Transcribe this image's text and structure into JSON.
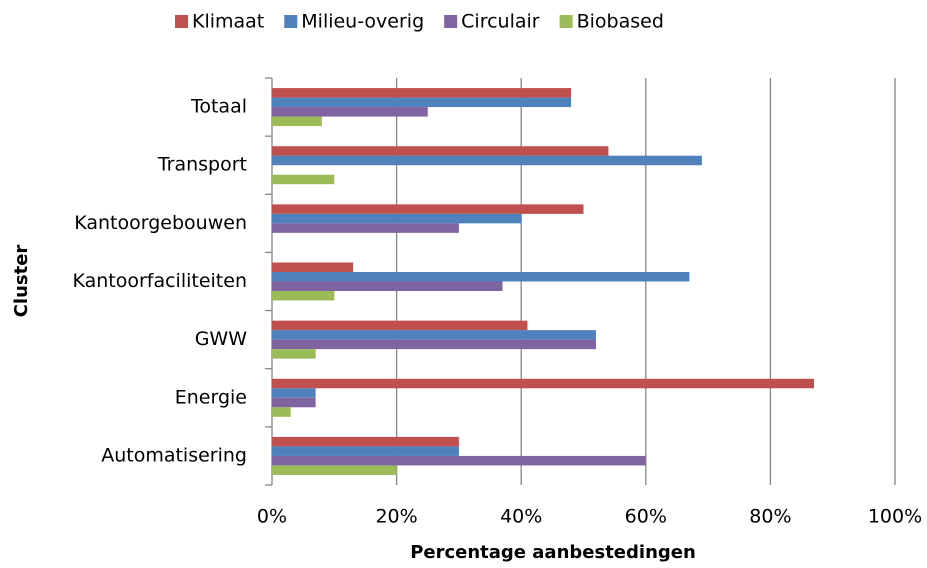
{
  "chart_data": {
    "type": "bar",
    "orientation": "horizontal",
    "xlabel": "Percentage aanbestedingen",
    "ylabel": "Cluster",
    "categories": [
      "Totaal",
      "Transport",
      "Kantoorgebouwen",
      "Kantoorfaciliteiten",
      "GWW",
      "Energie",
      "Automatisering"
    ],
    "series": [
      {
        "name": "Klimaat",
        "color": "#c0504d",
        "values": [
          48,
          54,
          50,
          13,
          41,
          87,
          30
        ]
      },
      {
        "name": "Milieu-overig",
        "color": "#4f81bd",
        "values": [
          48,
          69,
          40,
          67,
          52,
          7,
          30
        ]
      },
      {
        "name": "Circulair",
        "color": "#8064a2",
        "values": [
          25,
          0,
          30,
          37,
          52,
          7,
          60
        ]
      },
      {
        "name": "Biobased",
        "color": "#9bbb59",
        "values": [
          8,
          10,
          0,
          10,
          7,
          3,
          20
        ]
      }
    ],
    "xlim": [
      0,
      100
    ],
    "xticks": [
      {
        "value": 0,
        "label": "0%"
      },
      {
        "value": 20,
        "label": "20%"
      },
      {
        "value": 40,
        "label": "40%"
      },
      {
        "value": 60,
        "label": "60%"
      },
      {
        "value": 80,
        "label": "80%"
      },
      {
        "value": 100,
        "label": "100%"
      }
    ],
    "grid": true,
    "legend": "top"
  }
}
